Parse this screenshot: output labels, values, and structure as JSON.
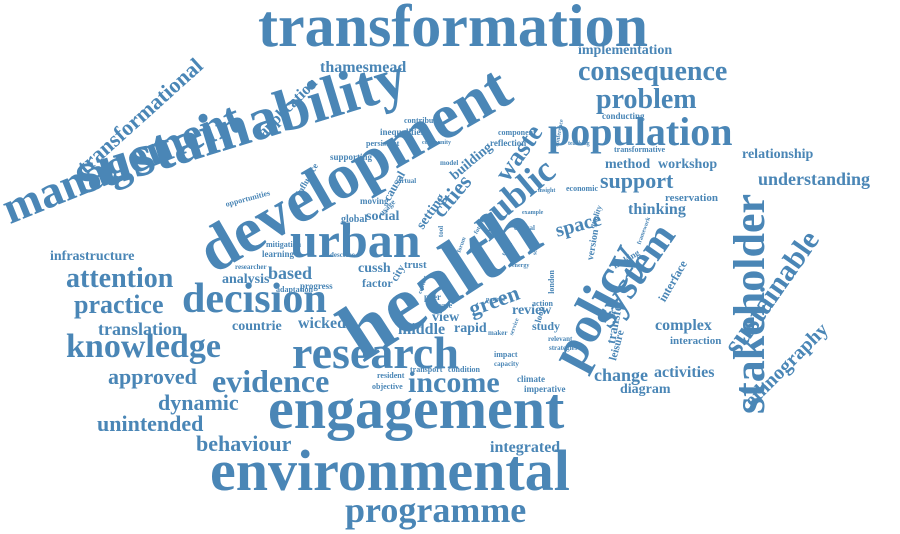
{
  "color": "#4a86b6",
  "words": [
    "transformation",
    "sustainability",
    "development",
    "health",
    "engagement",
    "environmental",
    "research",
    "policy",
    "urban",
    "stakeholder",
    "management",
    "population",
    "decision",
    "public",
    "knowledge",
    "programme",
    "consequence",
    "system",
    "evidence",
    "income",
    "problem",
    "sustainable",
    "attention",
    "practice",
    "transformational",
    "application",
    "thamesmead",
    "implementation",
    "support",
    "understanding",
    "relationship",
    "ethnography",
    "approved",
    "dynamic",
    "unintended",
    "behaviour",
    "integrated",
    "translation",
    "wicked",
    "countrie",
    "based",
    "analysis",
    "infrastructure",
    "cities",
    "waste",
    "space",
    "green",
    "building",
    "thinking",
    "workshop",
    "method",
    "reservation",
    "change",
    "activities",
    "diagram",
    "interaction",
    "complex",
    "review",
    "view",
    "rapid",
    "study",
    "middle",
    "social",
    "cussh",
    "factor",
    "trust",
    "city",
    "setting",
    "causal",
    "global",
    "moving",
    "learning",
    "mitigation",
    "adaptation",
    "progress",
    "opportunities",
    "influence",
    "inequalities",
    "persistent",
    "supporting",
    "contribute",
    "component",
    "reflection",
    "conducting",
    "transformative",
    "economic",
    "quality",
    "version",
    "transfer",
    "leisure",
    "making",
    "interface",
    "describe",
    "researcher",
    "usage",
    "virtual",
    "peer",
    "case",
    "loop",
    "model",
    "tool",
    "critical",
    "impact",
    "climate",
    "imperative",
    "transport",
    "condition",
    "resident",
    "objective",
    "strategies",
    "relevant",
    "capacity",
    "action",
    "partner",
    "london",
    "maker",
    "future",
    "forum",
    "local",
    "travel",
    "framework",
    "teaching",
    "conference",
    "insight",
    "example",
    "scale",
    "energy",
    "community",
    "service",
    "context"
  ]
}
